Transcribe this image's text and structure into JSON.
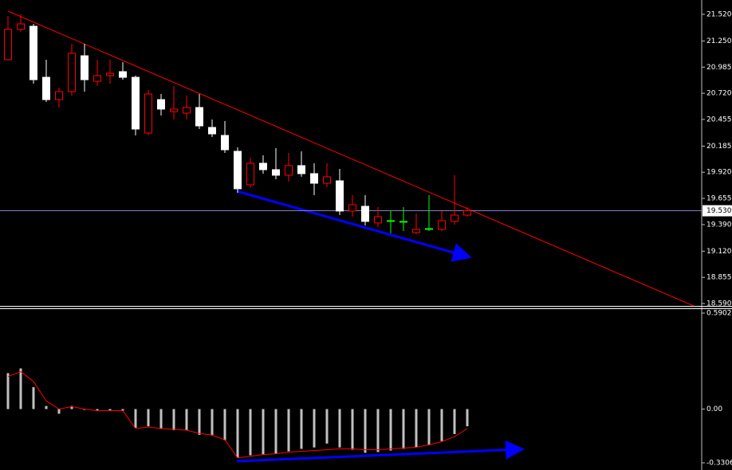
{
  "chart_data": [
    {
      "type": "candlestick",
      "open": [
        21.06,
        21.367,
        21.399,
        20.882,
        20.656,
        20.737,
        21.1,
        20.842,
        20.899,
        20.939,
        20.882,
        20.317,
        20.656,
        20.535,
        20.519,
        20.576,
        20.374,
        20.293,
        20.132,
        19.793,
        20.011,
        19.946,
        19.89,
        19.987,
        19.906,
        19.809,
        19.833,
        19.527,
        19.575,
        19.406,
        19.43,
        19.422,
        19.309,
        19.349,
        19.341,
        19.422,
        19.486
      ],
      "high": [
        21.504,
        21.52,
        21.423,
        21.06,
        20.777,
        21.221,
        21.221,
        21.06,
        21.06,
        21.036,
        20.899,
        20.753,
        20.713,
        20.794,
        20.697,
        20.713,
        20.455,
        20.438,
        20.172,
        20.067,
        20.091,
        20.164,
        20.116,
        20.132,
        20.011,
        20.011,
        19.954,
        19.688,
        19.688,
        19.567,
        19.527,
        19.567,
        19.502,
        19.688,
        19.527,
        19.89,
        19.567
      ],
      "low": [
        21.06,
        21.342,
        20.818,
        20.632,
        20.576,
        20.697,
        20.737,
        20.794,
        20.818,
        20.858,
        20.293,
        20.293,
        20.495,
        20.455,
        20.455,
        20.358,
        20.277,
        20.116,
        19.712,
        19.761,
        19.906,
        19.849,
        19.825,
        19.874,
        19.688,
        19.769,
        19.486,
        19.47,
        19.381,
        19.365,
        19.301,
        19.325,
        19.293,
        19.325,
        19.325,
        19.389,
        19.47
      ],
      "close": [
        21.367,
        21.423,
        20.858,
        20.656,
        20.737,
        21.125,
        20.858,
        20.899,
        20.923,
        20.882,
        20.358,
        20.713,
        20.56,
        20.56,
        20.576,
        20.39,
        20.309,
        20.148,
        19.753,
        20.011,
        19.946,
        19.89,
        19.987,
        19.906,
        19.809,
        19.874,
        19.527,
        19.591,
        19.422,
        19.47,
        19.43,
        19.422,
        19.341,
        19.349,
        19.43,
        19.486,
        19.53
      ],
      "up_color": "#ff0000",
      "down_color": "#ffffff",
      "doji_color": "#00ff00",
      "ylim": [
        18.566,
        21.649
      ],
      "yticks": [
        {
          "value": 21.52,
          "label": "21.520"
        },
        {
          "value": 21.25,
          "label": "21.250"
        },
        20.985,
        {
          "value": 20.72,
          "label": "20.720"
        },
        20.455,
        20.185,
        {
          "value": 19.92,
          "label": "19.920"
        },
        19.655,
        {
          "value": 19.39,
          "label": "19.390"
        },
        {
          "value": 19.12,
          "label": "19.120"
        },
        18.855,
        {
          "value": 18.59,
          "label": "18.590"
        }
      ],
      "current_price": {
        "value": 19.53,
        "label": "19.530"
      },
      "current_price_color": "#8080c0"
    },
    {
      "type": "bar",
      "values": [
        0.221,
        0.25,
        0.135,
        0.019,
        -0.029,
        0.019,
        -0.005,
        -0.01,
        -0.01,
        -0.01,
        -0.115,
        -0.106,
        -0.12,
        -0.13,
        -0.13,
        -0.159,
        -0.163,
        -0.192,
        -0.298,
        -0.284,
        -0.279,
        -0.274,
        -0.26,
        -0.245,
        -0.236,
        -0.212,
        -0.236,
        -0.25,
        -0.269,
        -0.264,
        -0.255,
        -0.245,
        -0.236,
        -0.221,
        -0.197,
        -0.154,
        -0.106
      ],
      "color": "#c0c0c0",
      "signal": {
        "color": "#ff0000",
        "values": [
          0.2,
          0.23,
          0.17,
          0.05,
          0.0,
          0.015,
          0.0,
          -0.01,
          -0.01,
          -0.01,
          -0.12,
          -0.11,
          -0.12,
          -0.125,
          -0.13,
          -0.15,
          -0.16,
          -0.19,
          -0.3,
          -0.29,
          -0.28,
          -0.275,
          -0.265,
          -0.26,
          -0.255,
          -0.25,
          -0.245,
          -0.245,
          -0.25,
          -0.25,
          -0.245,
          -0.24,
          -0.235,
          -0.22,
          -0.2,
          -0.17,
          -0.12
        ]
      },
      "ylim": [
        -0.3306,
        0.5902
      ],
      "yticks": [
        0.5902,
        {
          "value": 0,
          "label": "0.00"
        },
        -0.3306
      ]
    }
  ]
}
